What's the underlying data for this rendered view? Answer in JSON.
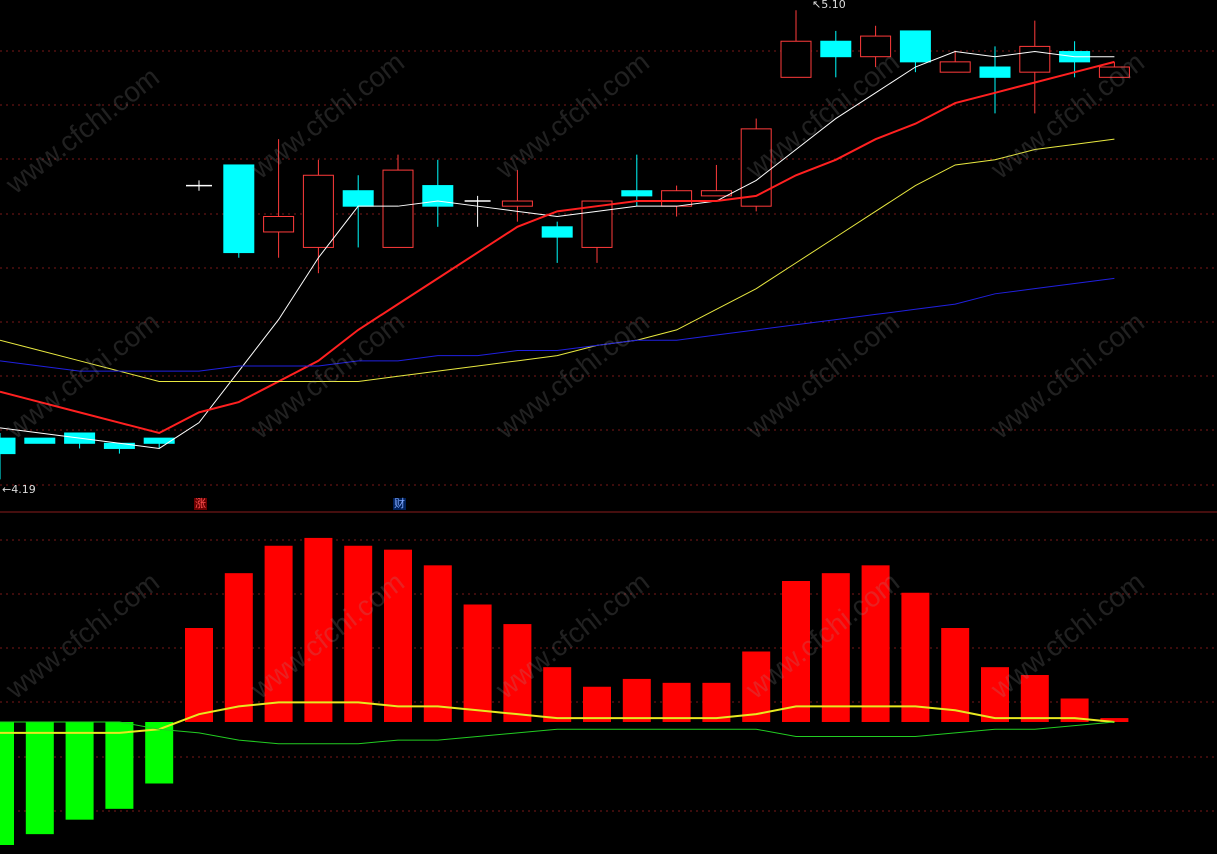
{
  "chart_data": [
    {
      "type": "candlestick",
      "title": "",
      "ylim": [
        4.15,
        5.12
      ],
      "grid": true,
      "annotations": {
        "high_label": "5.10",
        "low_label": "4.19"
      },
      "candles": [
        {
          "open": 4.27,
          "close": 4.24,
          "high": 4.28,
          "low": 4.19
        },
        {
          "open": 4.27,
          "close": 4.26,
          "high": 4.27,
          "low": 4.26
        },
        {
          "open": 4.28,
          "close": 4.26,
          "high": 4.28,
          "low": 4.25
        },
        {
          "open": 4.26,
          "close": 4.25,
          "high": 4.26,
          "low": 4.24
        },
        {
          "open": 4.27,
          "close": 4.26,
          "high": 4.27,
          "low": 4.25
        },
        {
          "open": 4.76,
          "close": 4.76,
          "high": 4.77,
          "low": 4.75
        },
        {
          "open": 4.8,
          "close": 4.63,
          "high": 4.8,
          "low": 4.62
        },
        {
          "open": 4.67,
          "close": 4.7,
          "high": 4.85,
          "low": 4.62
        },
        {
          "open": 4.64,
          "close": 4.78,
          "high": 4.81,
          "low": 4.59
        },
        {
          "open": 4.75,
          "close": 4.72,
          "high": 4.78,
          "low": 4.64
        },
        {
          "open": 4.64,
          "close": 4.79,
          "high": 4.82,
          "low": 4.64
        },
        {
          "open": 4.76,
          "close": 4.72,
          "high": 4.81,
          "low": 4.68
        },
        {
          "open": 4.73,
          "close": 4.73,
          "high": 4.74,
          "low": 4.68
        },
        {
          "open": 4.72,
          "close": 4.73,
          "high": 4.79,
          "low": 4.69
        },
        {
          "open": 4.68,
          "close": 4.66,
          "high": 4.69,
          "low": 4.61
        },
        {
          "open": 4.64,
          "close": 4.73,
          "high": 4.73,
          "low": 4.61
        },
        {
          "open": 4.75,
          "close": 4.74,
          "high": 4.82,
          "low": 4.72
        },
        {
          "open": 4.72,
          "close": 4.75,
          "high": 4.76,
          "low": 4.7
        },
        {
          "open": 4.74,
          "close": 4.75,
          "high": 4.8,
          "low": 4.74
        },
        {
          "open": 4.72,
          "close": 4.87,
          "high": 4.89,
          "low": 4.71
        },
        {
          "open": 4.97,
          "close": 5.04,
          "high": 5.1,
          "low": 4.97
        },
        {
          "open": 5.04,
          "close": 5.01,
          "high": 5.06,
          "low": 4.97
        },
        {
          "open": 5.01,
          "close": 5.05,
          "high": 5.07,
          "low": 4.99
        },
        {
          "open": 5.06,
          "close": 5.0,
          "high": 5.06,
          "low": 4.98
        },
        {
          "open": 4.98,
          "close": 5.0,
          "high": 5.02,
          "low": 4.98
        },
        {
          "open": 4.99,
          "close": 4.97,
          "high": 5.03,
          "low": 4.9
        },
        {
          "open": 4.98,
          "close": 5.03,
          "high": 5.08,
          "low": 4.9
        },
        {
          "open": 5.02,
          "close": 5.0,
          "high": 5.04,
          "low": 4.97
        },
        {
          "open": 4.97,
          "close": 4.99,
          "high": 5.0,
          "low": 4.97
        }
      ],
      "ma_series": [
        {
          "color": "#ffffff",
          "width": 1,
          "values": [
            4.29,
            4.28,
            4.27,
            4.26,
            4.25,
            4.3,
            4.4,
            4.5,
            4.62,
            4.72,
            4.72,
            4.73,
            4.72,
            4.71,
            4.7,
            4.71,
            4.72,
            4.72,
            4.73,
            4.77,
            4.83,
            4.89,
            4.94,
            4.99,
            5.02,
            5.01,
            5.02,
            5.01,
            5.01
          ]
        },
        {
          "color": "#ff2020",
          "width": 2,
          "values": [
            4.36,
            4.34,
            4.32,
            4.3,
            4.28,
            4.32,
            4.34,
            4.38,
            4.42,
            4.48,
            4.53,
            4.58,
            4.63,
            4.68,
            4.71,
            4.72,
            4.73,
            4.73,
            4.73,
            4.74,
            4.78,
            4.81,
            4.85,
            4.88,
            4.92,
            4.94,
            4.96,
            4.98,
            5.0
          ]
        },
        {
          "color": "#e8e840",
          "width": 1,
          "values": [
            4.46,
            4.44,
            4.42,
            4.4,
            4.38,
            4.38,
            4.38,
            4.38,
            4.38,
            4.38,
            4.39,
            4.4,
            4.41,
            4.42,
            4.43,
            4.45,
            4.46,
            4.48,
            4.52,
            4.56,
            4.61,
            4.66,
            4.71,
            4.76,
            4.8,
            4.81,
            4.83,
            4.84,
            4.85
          ]
        },
        {
          "color": "#2020e0",
          "width": 1,
          "values": [
            4.42,
            4.41,
            4.4,
            4.4,
            4.4,
            4.4,
            4.41,
            4.41,
            4.41,
            4.42,
            4.42,
            4.43,
            4.43,
            4.44,
            4.44,
            4.45,
            4.46,
            4.46,
            4.47,
            4.48,
            4.49,
            4.5,
            4.51,
            4.52,
            4.53,
            4.55,
            4.56,
            4.57,
            4.58
          ]
        }
      ]
    },
    {
      "type": "bar",
      "title": "",
      "ylim": [
        -0.34,
        0.48
      ],
      "values": [
        -0.34,
        -0.31,
        -0.27,
        -0.24,
        -0.17,
        0.24,
        0.38,
        0.45,
        0.47,
        0.45,
        0.44,
        0.4,
        0.3,
        0.25,
        0.14,
        0.09,
        0.11,
        0.1,
        0.1,
        0.18,
        0.36,
        0.38,
        0.4,
        0.33,
        0.24,
        0.14,
        0.12,
        0.06,
        0.01
      ],
      "lines": [
        {
          "color": "#e8e820",
          "values": [
            -0.03,
            -0.03,
            -0.03,
            -0.03,
            -0.02,
            0.02,
            0.04,
            0.05,
            0.05,
            0.05,
            0.04,
            0.04,
            0.03,
            0.02,
            0.01,
            0.01,
            0.01,
            0.01,
            0.01,
            0.02,
            0.04,
            0.04,
            0.04,
            0.04,
            0.03,
            0.01,
            0.01,
            0.01,
            0.0
          ]
        },
        {
          "color": "#22cc22",
          "values": [
            0.0,
            0.0,
            0.0,
            0.0,
            -0.02,
            -0.03,
            -0.05,
            -0.06,
            -0.06,
            -0.06,
            -0.05,
            -0.05,
            -0.04,
            -0.03,
            -0.02,
            -0.02,
            -0.02,
            -0.02,
            -0.02,
            -0.02,
            -0.04,
            -0.04,
            -0.04,
            -0.04,
            -0.03,
            -0.02,
            -0.02,
            -0.01,
            0.0
          ]
        }
      ]
    }
  ],
  "markers": {
    "zhang": {
      "label": "涨",
      "color": "#ff5050",
      "background": "#6a0000"
    },
    "cai": {
      "label": "财",
      "color": "#7fa8ff",
      "background": "#00205a"
    }
  },
  "watermark": "www.cfchi.com",
  "colors": {
    "up_candle": "#ff3b3b",
    "down_candle": "#00ffff",
    "doji": "#ffffff",
    "up_bar": "#ff0000",
    "down_bar": "#00ff00",
    "grid": "#7a1818",
    "separator": "#8a1c1c"
  }
}
